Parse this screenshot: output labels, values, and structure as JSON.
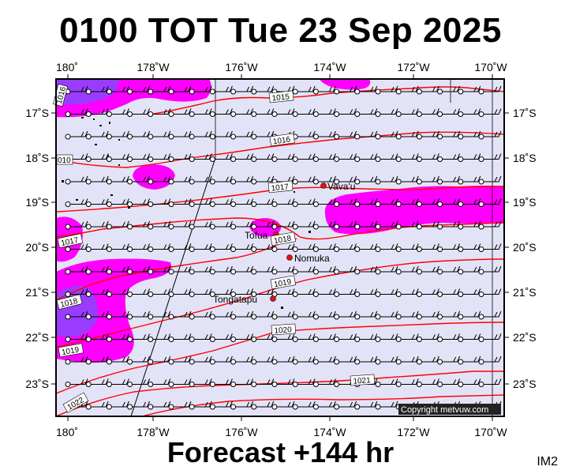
{
  "title": "0100 TOT Tue 23 Sep 2025",
  "subtitle": "Forecast +144 hr",
  "corner_code": "IM2",
  "copyright": "Copyright metvuw.com",
  "lon_labels": [
    "180˚",
    "178˚W",
    "176˚W",
    "174˚W",
    "172˚W",
    "170˚W"
  ],
  "lat_labels": [
    "17˚S",
    "18˚S",
    "19˚S",
    "20˚S",
    "21˚S",
    "22˚S",
    "23˚S"
  ],
  "places": [
    {
      "name": "Vava'u",
      "lon": -174.0,
      "lat": -18.65
    },
    {
      "name": "Tofua",
      "lon": -175.05,
      "lat": -19.75
    },
    {
      "name": "Nomuka",
      "lon": -174.8,
      "lat": -20.25
    },
    {
      "name": "Tongatapu",
      "lon": -175.2,
      "lat": -21.15
    }
  ],
  "isobar_labels": [
    "1015",
    "1016",
    "1017",
    "1018",
    "1019",
    "1020",
    "1021",
    "1022",
    "1016",
    "1017",
    "1018",
    "1019"
  ],
  "colors": {
    "sea": "#e3e3f8",
    "magenta": "#ff00ff",
    "purple": "#9a3cff",
    "isobar": "#ff0000",
    "place_dot": "#e81010"
  }
}
